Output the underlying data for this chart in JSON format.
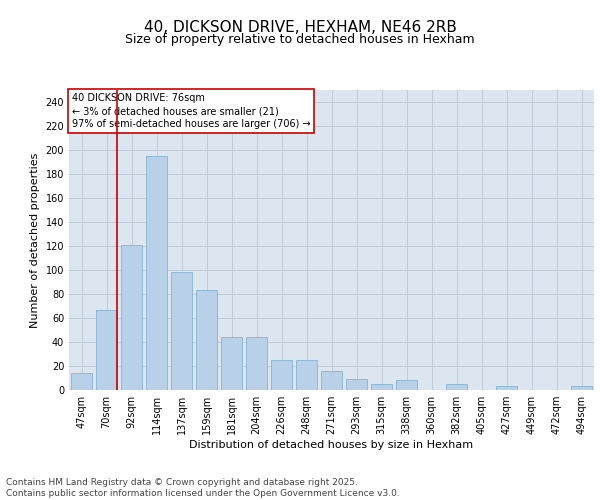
{
  "title1": "40, DICKSON DRIVE, HEXHAM, NE46 2RB",
  "title2": "Size of property relative to detached houses in Hexham",
  "xlabel": "Distribution of detached houses by size in Hexham",
  "ylabel": "Number of detached properties",
  "categories": [
    "47sqm",
    "70sqm",
    "92sqm",
    "114sqm",
    "137sqm",
    "159sqm",
    "181sqm",
    "204sqm",
    "226sqm",
    "248sqm",
    "271sqm",
    "293sqm",
    "315sqm",
    "338sqm",
    "360sqm",
    "382sqm",
    "405sqm",
    "427sqm",
    "449sqm",
    "472sqm",
    "494sqm"
  ],
  "values": [
    14,
    67,
    121,
    195,
    98,
    83,
    44,
    44,
    25,
    25,
    16,
    9,
    5,
    8,
    0,
    5,
    0,
    3,
    0,
    0,
    3
  ],
  "bar_color": "#b8d0e8",
  "bar_edge_color": "#7aaaca",
  "grid_color": "#c0ccd8",
  "bg_color": "#dce6f0",
  "annotation_line1": "40 DICKSON DRIVE: 76sqm",
  "annotation_line2": "← 3% of detached houses are smaller (21)",
  "annotation_line3": "97% of semi-detached houses are larger (706) →",
  "annotation_box_color": "#ffffff",
  "annotation_border_color": "#cc0000",
  "vline_color": "#cc0000",
  "vline_xindex": 1,
  "ylim": [
    0,
    250
  ],
  "yticks": [
    0,
    20,
    40,
    60,
    80,
    100,
    120,
    140,
    160,
    180,
    200,
    220,
    240
  ],
  "footer": "Contains HM Land Registry data © Crown copyright and database right 2025.\nContains public sector information licensed under the Open Government Licence v3.0.",
  "footer_fontsize": 6.5,
  "title_fontsize1": 11,
  "title_fontsize2": 9,
  "xlabel_fontsize": 8,
  "ylabel_fontsize": 8,
  "tick_fontsize": 7,
  "annotation_fontsize": 7
}
